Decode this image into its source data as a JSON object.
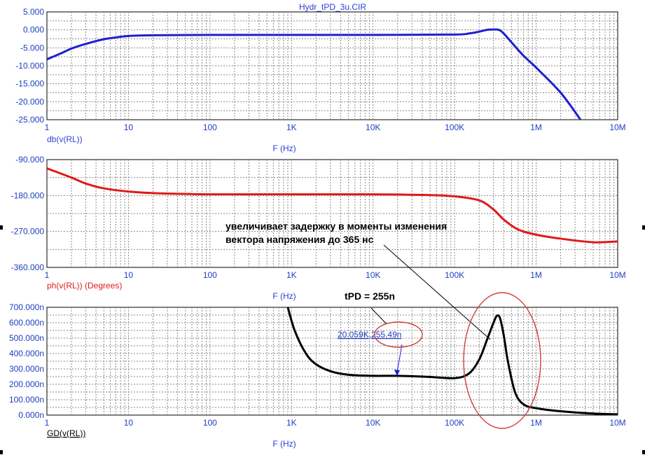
{
  "window": {
    "title": "Hydr_tPD_3u.CIR"
  },
  "colors": {
    "axis_text": "#1f3fbf",
    "mag": "#1f1fd0",
    "phase": "#e01a1a",
    "gd": "#000000",
    "grid": "#8a8a8a",
    "ellipse": "#d23c3c"
  },
  "chart_data": [
    {
      "type": "line",
      "title": "Hydr_tPD_3u.CIR",
      "xlabel": "F (Hz)",
      "ylabel": "db(v(RL))",
      "xscale": "log",
      "xlim": [
        1,
        10000000
      ],
      "ylim": [
        -25,
        5
      ],
      "x_ticks": [
        "1",
        "10",
        "100",
        "1K",
        "10K",
        "100K",
        "1M",
        "10M"
      ],
      "y_ticks": [
        "5.000",
        "0.000",
        "-5.000",
        "-10.000",
        "-15.000",
        "-20.000",
        "-25.000"
      ],
      "grid": true,
      "series": [
        {
          "name": "db(v(RL))",
          "x": [
            1,
            1.5,
            2,
            3,
            5,
            7,
            10,
            20,
            100,
            1000,
            10000,
            100000,
            150000,
            200000,
            250000,
            300000,
            350000,
            400000,
            500000,
            700000,
            1000000,
            2000000,
            3500000
          ],
          "y": [
            -8.2,
            -6.5,
            -5.2,
            -3.9,
            -2.6,
            -2.1,
            -1.7,
            -1.5,
            -1.4,
            -1.4,
            -1.4,
            -1.3,
            -1.0,
            -0.5,
            0.0,
            0.1,
            0.0,
            -1.0,
            -3.5,
            -7.2,
            -10.5,
            -17.5,
            -25.0
          ]
        }
      ]
    },
    {
      "type": "line",
      "xlabel": "F (Hz)",
      "ylabel": "ph(v(RL)) (Degrees)",
      "xscale": "log",
      "xlim": [
        1,
        10000000
      ],
      "ylim": [
        -360,
        -90
      ],
      "x_ticks": [
        "1",
        "10",
        "100",
        "1K",
        "10K",
        "100K",
        "1M",
        "10M"
      ],
      "y_ticks": [
        "-90.000",
        "-180.000",
        "-270.000",
        "-360.000"
      ],
      "grid": true,
      "series": [
        {
          "name": "ph(v(RL)) (Degrees)",
          "x": [
            1,
            2,
            3,
            5,
            10,
            20,
            50,
            100,
            1000,
            10000,
            50000,
            100000,
            200000,
            300000,
            400000,
            600000,
            1000000,
            2000000,
            5000000,
            10000000
          ],
          "y": [
            -112,
            -135,
            -150,
            -162,
            -170,
            -174,
            -176,
            -177,
            -177,
            -177,
            -179,
            -182,
            -192,
            -215,
            -240,
            -265,
            -278,
            -288,
            -297,
            -295
          ]
        }
      ]
    },
    {
      "type": "line",
      "xlabel": "F (Hz)",
      "ylabel": "GD(v(RL))",
      "xscale": "log",
      "xlim": [
        1,
        10000000
      ],
      "ylim": [
        0,
        700
      ],
      "y_unit": "n",
      "x_ticks": [
        "1",
        "10",
        "100",
        "1K",
        "10K",
        "100K",
        "1M",
        "10M"
      ],
      "y_ticks": [
        "700.000n",
        "600.000n",
        "500.000n",
        "400.000n",
        "300.000n",
        "200.000n",
        "100.000n",
        "0.000n"
      ],
      "grid": true,
      "series": [
        {
          "name": "GD(v(RL))",
          "x": [
            900,
            1100,
            1500,
            2000,
            3000,
            5000,
            10000,
            20000,
            50000,
            100000,
            150000,
            200000,
            250000,
            300000,
            330000,
            360000,
            400000,
            450000,
            550000,
            700000,
            1000000,
            2000000,
            5000000,
            10000000
          ],
          "y": [
            700,
            545,
            400,
            330,
            285,
            262,
            255,
            255,
            248,
            240,
            270,
            360,
            490,
            600,
            645,
            630,
            520,
            350,
            150,
            70,
            45,
            25,
            10,
            5
          ]
        }
      ],
      "cursor_label": "20.059K,255.49n",
      "cursor_x_text": "20.059K",
      "cursor_y_text": "255.49n"
    }
  ],
  "annotations": {
    "tpd": "tPD = 255n",
    "note_line1": "увеличивает задержку в моменты изменения",
    "note_line2": "вектора напряжения до 365 нс"
  }
}
